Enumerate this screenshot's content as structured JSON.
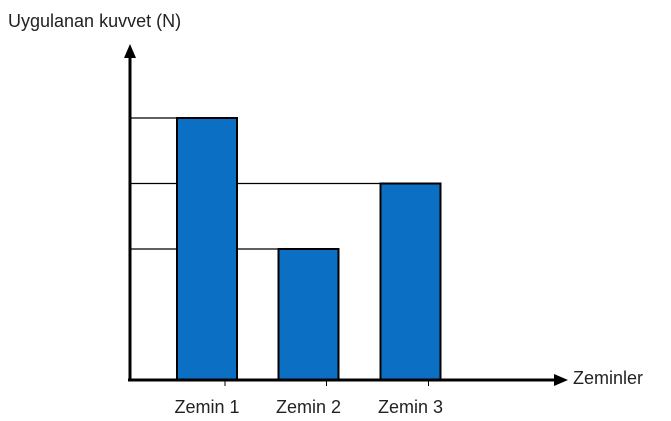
{
  "chart_data": {
    "type": "bar",
    "y_label": "Uygulanan kuvvet (N)",
    "x_label": "Zeminler",
    "categories": [
      "Zemin 1",
      "Zemin 2",
      "Zemin 3"
    ],
    "values": [
      4,
      2,
      3
    ],
    "color": "#0b6fc4",
    "ylim": [
      0,
      5
    ]
  }
}
